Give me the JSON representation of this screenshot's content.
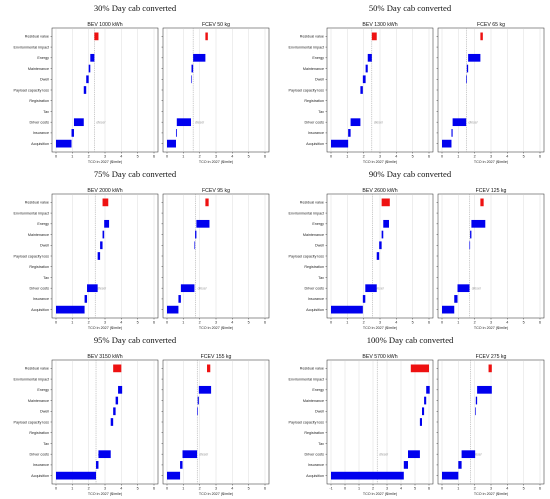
{
  "colors": {
    "bar": "#0000ee",
    "residual": "#ee1111",
    "frame": "#222222",
    "diesel_line": "#9a9a9a"
  },
  "categories": [
    "Residual value",
    "Environmental impact",
    "Energy",
    "Maintenance",
    "Dwell",
    "Payload capacity loss",
    "Registration",
    "Tax",
    "Driver costs",
    "Insurance",
    "Acquisition"
  ],
  "diesel_label": "diesel",
  "xlabel": "TCO in 2027 ($/mile)",
  "chart_data": [
    {
      "type": "bar",
      "title": "30% Day cab converted",
      "panels": [
        {
          "subtitle": "BEV 1000 kWh",
          "xlim": [
            0,
            6
          ],
          "ticks": [
            0,
            1,
            2,
            3,
            4,
            5,
            6
          ],
          "diesel": 2.35,
          "bars": [
            [
              2.35,
              2.6
            ],
            null,
            [
              2.1,
              2.35
            ],
            [
              2.0,
              2.1
            ],
            [
              1.85,
              2.0
            ],
            [
              1.7,
              1.85
            ],
            null,
            null,
            [
              1.1,
              1.7
            ],
            [
              0.95,
              1.1
            ],
            [
              0,
              0.95
            ]
          ]
        },
        {
          "subtitle": "FCEV 50 kg",
          "xlim": [
            0,
            6
          ],
          "ticks": [
            0,
            1,
            2,
            3,
            4,
            5,
            6
          ],
          "diesel": 1.6,
          "bars": [
            [
              2.35,
              2.5
            ],
            null,
            [
              1.6,
              2.35
            ],
            [
              1.5,
              1.6
            ],
            [
              1.47,
              1.5
            ],
            null,
            null,
            null,
            [
              0.6,
              1.47
            ],
            [
              0.55,
              0.6
            ],
            [
              0,
              0.55
            ]
          ]
        }
      ]
    },
    {
      "type": "bar",
      "title": "50% Day cab converted",
      "panels": [
        {
          "subtitle": "BEV 1300 kWh",
          "xlim": [
            0,
            6
          ],
          "ticks": [
            0,
            1,
            2,
            3,
            4,
            5,
            6
          ],
          "diesel": 2.5,
          "bars": [
            [
              2.5,
              2.8
            ],
            null,
            [
              2.25,
              2.5
            ],
            [
              2.12,
              2.25
            ],
            [
              1.95,
              2.12
            ],
            [
              1.8,
              1.95
            ],
            null,
            null,
            [
              1.2,
              1.8
            ],
            [
              1.05,
              1.2
            ],
            [
              0,
              1.05
            ]
          ]
        },
        {
          "subtitle": "FCEV 65 kg",
          "xlim": [
            0,
            6
          ],
          "ticks": [
            0,
            1,
            2,
            3,
            4,
            5,
            6
          ],
          "diesel": 1.5,
          "bars": [
            [
              2.35,
              2.5
            ],
            null,
            [
              1.6,
              2.35
            ],
            [
              1.52,
              1.6
            ],
            [
              1.48,
              1.52
            ],
            null,
            null,
            null,
            [
              0.65,
              1.48
            ],
            [
              0.58,
              0.65
            ],
            [
              0,
              0.58
            ]
          ]
        }
      ]
    },
    {
      "type": "bar",
      "title": "75% Day cab converted",
      "panels": [
        {
          "subtitle": "BEV 2000 kWh",
          "xlim": [
            0,
            6
          ],
          "ticks": [
            0,
            1,
            2,
            3,
            4,
            5,
            6
          ],
          "diesel": 2.4,
          "bars": [
            [
              2.85,
              3.2
            ],
            null,
            [
              2.95,
              3.25
            ],
            [
              2.85,
              2.95
            ],
            [
              2.7,
              2.85
            ],
            [
              2.55,
              2.7
            ],
            null,
            null,
            [
              1.9,
              2.55
            ],
            [
              1.75,
              1.9
            ],
            [
              0,
              1.75
            ]
          ]
        },
        {
          "subtitle": "FCEV 95 kg",
          "xlim": [
            0,
            6
          ],
          "ticks": [
            0,
            1,
            2,
            3,
            4,
            5,
            6
          ],
          "diesel": 1.75,
          "bars": [
            [
              2.35,
              2.55
            ],
            null,
            [
              1.8,
              2.6
            ],
            [
              1.72,
              1.8
            ],
            [
              1.68,
              1.72
            ],
            null,
            null,
            null,
            [
              0.85,
              1.68
            ],
            [
              0.7,
              0.85
            ],
            [
              0,
              0.7
            ]
          ]
        }
      ]
    },
    {
      "type": "bar",
      "title": "90% Day cab converted",
      "panels": [
        {
          "subtitle": "BEV 2600 kWh",
          "xlim": [
            0,
            6
          ],
          "ticks": [
            0,
            1,
            2,
            3,
            4,
            5,
            6
          ],
          "diesel": 2.55,
          "bars": [
            [
              3.1,
              3.6
            ],
            null,
            [
              3.2,
              3.55
            ],
            [
              3.1,
              3.2
            ],
            [
              2.95,
              3.1
            ],
            [
              2.8,
              2.95
            ],
            null,
            null,
            [
              2.1,
              2.8
            ],
            [
              1.95,
              2.1
            ],
            [
              0,
              1.95
            ]
          ]
        },
        {
          "subtitle": "FCEV 125 kg",
          "xlim": [
            0,
            6
          ],
          "ticks": [
            0,
            1,
            2,
            3,
            4,
            5,
            6
          ],
          "diesel": 1.7,
          "bars": [
            [
              2.35,
              2.55
            ],
            null,
            [
              1.8,
              2.65
            ],
            [
              1.72,
              1.8
            ],
            [
              1.68,
              1.72
            ],
            null,
            null,
            null,
            [
              0.95,
              1.68
            ],
            [
              0.75,
              0.95
            ],
            [
              0,
              0.75
            ]
          ]
        }
      ]
    },
    {
      "type": "bar",
      "title": "95% Day cab converted",
      "panels": [
        {
          "subtitle": "BEV 3150 kWh",
          "xlim": [
            0,
            6
          ],
          "ticks": [
            0,
            1,
            2,
            3,
            4,
            5,
            6
          ],
          "diesel": 2.45,
          "bars": [
            [
              3.5,
              4.0
            ],
            null,
            [
              3.8,
              4.05
            ],
            [
              3.65,
              3.8
            ],
            [
              3.5,
              3.65
            ],
            [
              3.35,
              3.5
            ],
            null,
            null,
            [
              2.6,
              3.35
            ],
            [
              2.45,
              2.6
            ],
            [
              0,
              2.45
            ]
          ]
        },
        {
          "subtitle": "FCEV 155 kg",
          "xlim": [
            0,
            6
          ],
          "ticks": [
            0,
            1,
            2,
            3,
            4,
            5,
            6
          ],
          "diesel": 1.85,
          "bars": [
            [
              2.45,
              2.65
            ],
            null,
            [
              1.95,
              2.7
            ],
            [
              1.88,
              1.95
            ],
            [
              1.84,
              1.88
            ],
            null,
            null,
            null,
            [
              0.95,
              1.84
            ],
            [
              0.8,
              0.95
            ],
            [
              0,
              0.8
            ]
          ]
        }
      ]
    },
    {
      "type": "bar",
      "title": "100% Day cab converted",
      "panels": [
        {
          "subtitle": "BEV 5700 kWh",
          "xlim": [
            -1,
            6
          ],
          "ticks": [
            -1,
            0,
            1,
            2,
            3,
            4,
            5,
            6
          ],
          "diesel": 2.3,
          "bars": [
            [
              4.7,
              6.0
            ],
            null,
            [
              5.8,
              6.05
            ],
            [
              5.65,
              5.8
            ],
            [
              5.5,
              5.65
            ],
            [
              5.35,
              5.5
            ],
            null,
            null,
            [
              4.5,
              5.35
            ],
            [
              4.2,
              4.5
            ],
            [
              -1,
              4.2
            ]
          ]
        },
        {
          "subtitle": "FCEV 275 kg",
          "xlim": [
            0,
            6
          ],
          "ticks": [
            0,
            1,
            2,
            3,
            4,
            5,
            6
          ],
          "diesel": 1.75,
          "bars": [
            [
              2.85,
              3.05
            ],
            null,
            [
              2.15,
              3.05
            ],
            [
              2.07,
              2.15
            ],
            [
              2.03,
              2.07
            ],
            null,
            null,
            null,
            [
              1.2,
              2.03
            ],
            [
              1.0,
              1.2
            ],
            [
              0,
              1.0
            ]
          ]
        }
      ]
    }
  ]
}
